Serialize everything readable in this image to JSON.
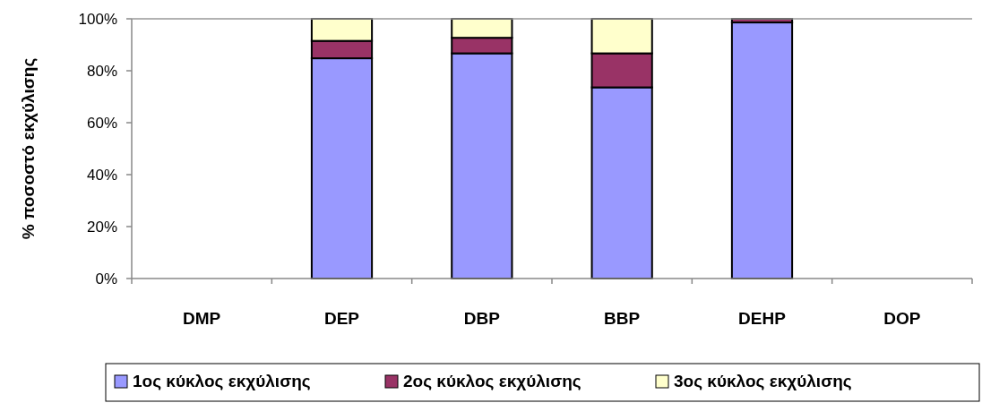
{
  "chart_data": {
    "type": "bar",
    "stacked": true,
    "ylabel": "% ποσοστό εκχύλισης",
    "categories": [
      "DMP",
      "DEP",
      "DBP",
      "BBP",
      "DEHP",
      "DOP"
    ],
    "series": [
      {
        "name": "1ος κύκλος εκχύλισης",
        "color": "#9999ff",
        "values": [
          null,
          84.8,
          86.7,
          73.6,
          98.6,
          null
        ]
      },
      {
        "name": "2ος κύκλος εκχύλισης",
        "color": "#993366",
        "values": [
          null,
          6.7,
          6.0,
          13.1,
          1.4,
          null
        ]
      },
      {
        "name": "3ος κύκλος εκχύλισης",
        "color": "#ffffcc",
        "values": [
          null,
          8.5,
          7.3,
          13.3,
          null,
          null
        ]
      }
    ],
    "ylim": [
      0,
      100
    ],
    "yticks": [
      {
        "value": 0,
        "label": "0%"
      },
      {
        "value": 20,
        "label": "20%"
      },
      {
        "value": 40,
        "label": "40%"
      },
      {
        "value": 60,
        "label": "60%"
      },
      {
        "value": 80,
        "label": "80%"
      },
      {
        "value": 100,
        "label": "100%"
      }
    ],
    "grid": false,
    "legend": "bottom"
  }
}
